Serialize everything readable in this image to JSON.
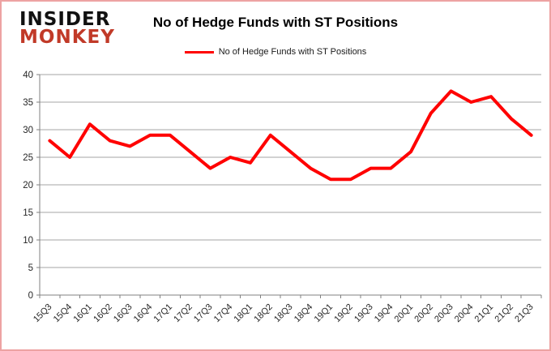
{
  "logo": {
    "line1": "INSIDER",
    "line2": "MONKEY"
  },
  "header": {
    "title": "No of Hedge Funds with ST Positions"
  },
  "legend": {
    "label": "No of Hedge Funds with ST Positions"
  },
  "chart_data": {
    "type": "line",
    "title": "No of Hedge Funds with ST Positions",
    "categories": [
      "15Q3",
      "15Q4",
      "16Q1",
      "16Q2",
      "16Q3",
      "16Q4",
      "17Q1",
      "17Q2",
      "17Q3",
      "17Q4",
      "18Q1",
      "18Q2",
      "18Q3",
      "18Q4",
      "19Q1",
      "19Q2",
      "19Q3",
      "19Q4",
      "20Q1",
      "20Q2",
      "20Q3",
      "20Q4",
      "21Q1",
      "21Q2",
      "21Q3"
    ],
    "series": [
      {
        "name": "No of Hedge Funds with ST Positions",
        "color": "#ff0000",
        "values": [
          28,
          25,
          31,
          28,
          27,
          29,
          29,
          26,
          23,
          25,
          24,
          29,
          26,
          23,
          21,
          21,
          23,
          23,
          26,
          33,
          37,
          35,
          36,
          32,
          29
        ]
      }
    ],
    "ylim": [
      0,
      40
    ],
    "yticks": [
      0,
      5,
      10,
      15,
      20,
      25,
      30,
      35,
      40
    ],
    "grid": true,
    "legend_position": "top-center"
  },
  "colors": {
    "line": "#ff0000",
    "grid": "#a6a6a6",
    "axis": "#808080",
    "tick_text": "#262626",
    "border": "#eda3a3",
    "logo_black": "#111111",
    "logo_red": "#c13a28"
  }
}
